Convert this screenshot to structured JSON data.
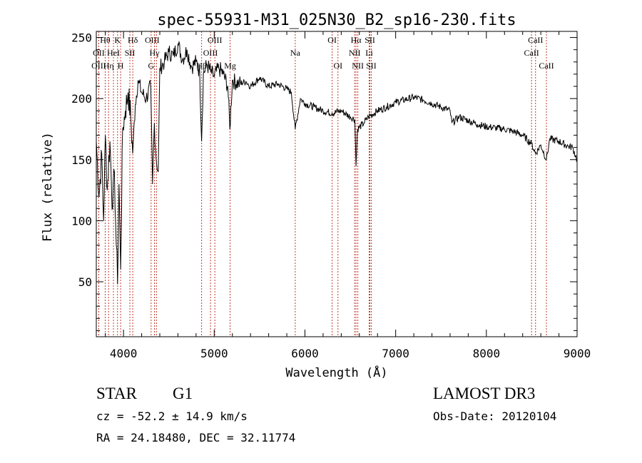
{
  "chart_data": {
    "type": "line",
    "title": "spec-55931-M31_025N30_B2_sp16-230.fits",
    "xlabel": "Wavelength (Å)",
    "ylabel": "Flux (relative)",
    "xlim": [
      3700,
      9000
    ],
    "ylim": [
      5,
      255
    ],
    "xticks": [
      4000,
      5000,
      6000,
      7000,
      8000,
      9000
    ],
    "yticks": [
      50,
      100,
      150,
      200,
      250
    ],
    "series": [
      {
        "name": "flux",
        "x": [
          3700,
          3730,
          3760,
          3780,
          3800,
          3820,
          3850,
          3880,
          3900,
          3920,
          3934,
          3950,
          3968,
          3990,
          4020,
          4050,
          4080,
          4101,
          4130,
          4160,
          4200,
          4250,
          4300,
          4320,
          4340,
          4360,
          4383,
          4400,
          4450,
          4500,
          4550,
          4600,
          4650,
          4700,
          4750,
          4800,
          4840,
          4861,
          4880,
          4920,
          4960,
          5000,
          5050,
          5100,
          5150,
          5172,
          5200,
          5270,
          5350,
          5400,
          5500,
          5600,
          5700,
          5800,
          5850,
          5893,
          5950,
          6000,
          6100,
          6200,
          6300,
          6400,
          6500,
          6550,
          6563,
          6580,
          6650,
          6700,
          6800,
          6900,
          7000,
          7100,
          7200,
          7300,
          7400,
          7500,
          7600,
          7620,
          7700,
          7800,
          7900,
          8000,
          8100,
          8200,
          8300,
          8400,
          8498,
          8542,
          8600,
          8662,
          8700,
          8800,
          8900,
          8950,
          9000
        ],
        "y": [
          165,
          120,
          155,
          100,
          170,
          125,
          165,
          110,
          140,
          80,
          48,
          130,
          60,
          175,
          190,
          205,
          185,
          155,
          195,
          215,
          205,
          200,
          210,
          130,
          180,
          150,
          140,
          225,
          230,
          238,
          235,
          245,
          232,
          240,
          226,
          230,
          222,
          165,
          220,
          228,
          222,
          218,
          225,
          220,
          210,
          175,
          215,
          212,
          214,
          210,
          217,
          210,
          212,
          208,
          205,
          175,
          200,
          196,
          193,
          190,
          188,
          190,
          185,
          183,
          145,
          175,
          180,
          185,
          190,
          193,
          197,
          199,
          201,
          199,
          196,
          193,
          190,
          180,
          185,
          182,
          179,
          177,
          176,
          175,
          173,
          170,
          163,
          155,
          162,
          150,
          167,
          165,
          161,
          160,
          150
        ]
      }
    ],
    "lines": [
      {
        "label": "Hθ",
        "wave": 3798,
        "row": 0,
        "offset": 0
      },
      {
        "label": "K",
        "wave": 3934,
        "row": 0,
        "offset": 0
      },
      {
        "label": "Hδ",
        "wave": 4102,
        "row": 0,
        "offset": 0
      },
      {
        "label": "OII",
        "wave": 3727,
        "row": 1,
        "offset": 0
      },
      {
        "label": "HeI",
        "wave": 3889,
        "row": 1,
        "offset": 0
      },
      {
        "label": "SII",
        "wave": 4070,
        "row": 1,
        "offset": 0
      },
      {
        "label": "OIII",
        "wave": 3727,
        "row": 2,
        "offset": 0
      },
      {
        "label": "Hη",
        "wave": 3835,
        "row": 2,
        "offset": 0
      },
      {
        "label": "H",
        "wave": 3968,
        "row": 2,
        "offset": 0
      },
      {
        "label": "OIII",
        "wave": 4363,
        "row": 0,
        "offset": -6
      },
      {
        "label": "Hγ",
        "wave": 4341,
        "row": 1,
        "offset": 0
      },
      {
        "label": "G",
        "wave": 4304,
        "row": 2,
        "offset": 0
      },
      {
        "label": "OIII",
        "wave": 5007,
        "row": 0,
        "offset": 0
      },
      {
        "label": "OIII",
        "wave": 4959,
        "row": 1,
        "offset": 0
      },
      {
        "label": "Hβ",
        "wave": 4861,
        "row": 2,
        "offset": 0
      },
      {
        "label": "Mg",
        "wave": 5175,
        "row": 2,
        "offset": 0
      },
      {
        "label": "Na",
        "wave": 5893,
        "row": 1,
        "offset": 0
      },
      {
        "label": "OI",
        "wave": 6300,
        "row": 0,
        "offset": 0
      },
      {
        "label": "OI",
        "wave": 6364,
        "row": 2,
        "offset": 0
      },
      {
        "label": "Hα",
        "wave": 6563,
        "row": 0,
        "offset": 0
      },
      {
        "label": "SII",
        "wave": 6716,
        "row": 0,
        "offset": 0
      },
      {
        "label": "NII",
        "wave": 6548,
        "row": 1,
        "offset": 0
      },
      {
        "label": "Li",
        "wave": 6708,
        "row": 1,
        "offset": 0
      },
      {
        "label": "NII",
        "wave": 6583,
        "row": 2,
        "offset": 0
      },
      {
        "label": "SII",
        "wave": 6731,
        "row": 2,
        "offset": 0
      },
      {
        "label": "CaII",
        "wave": 8542,
        "row": 0,
        "offset": 0
      },
      {
        "label": "CaII",
        "wave": 8498,
        "row": 1,
        "offset": 0
      },
      {
        "label": "CaII",
        "wave": 8662,
        "row": 2,
        "offset": 0
      }
    ]
  },
  "info": {
    "object_class": "STAR",
    "subclass": "G1",
    "survey": "LAMOST DR3",
    "cz": "cz = -52.2 ± 14.9 km/s",
    "obs_date": "Obs-Date: 20120104",
    "coords": "RA =  24.18480, DEC =  32.11774"
  },
  "colors": {
    "spectrum": "#000000",
    "line_markers": "#c0392b",
    "axes": "#000000"
  }
}
